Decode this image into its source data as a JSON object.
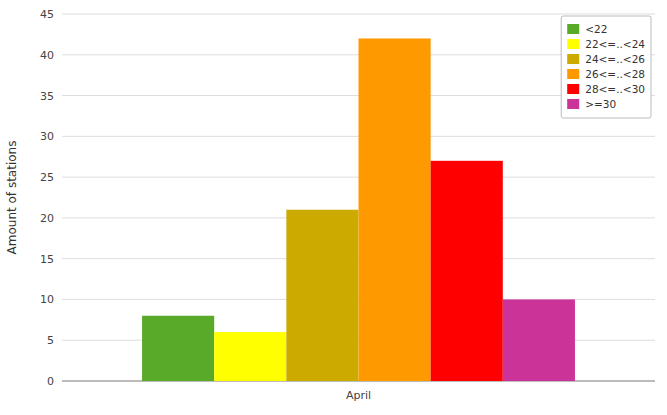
{
  "chart_data": {
    "type": "bar",
    "ylabel": "Amount of stations",
    "categories": [
      "April"
    ],
    "series": [
      {
        "name": "<22",
        "color": "#5aaa2a",
        "values": [
          8
        ]
      },
      {
        "name": "22<=..<24",
        "color": "#ffff00",
        "values": [
          6
        ]
      },
      {
        "name": "24<=..<26",
        "color": "#ccaa00",
        "values": [
          21
        ]
      },
      {
        "name": "26<=..<28",
        "color": "#ff9900",
        "values": [
          42
        ]
      },
      {
        "name": "28<=..<30",
        "color": "#ff0000",
        "values": [
          27
        ]
      },
      {
        "name": ">=30",
        "color": "#cc3399",
        "values": [
          10
        ]
      }
    ],
    "ylim": [
      0,
      45
    ],
    "yticks": [
      0,
      5,
      10,
      15,
      20,
      25,
      30,
      35,
      40,
      45
    ],
    "grid": true,
    "legend": "upper right"
  }
}
